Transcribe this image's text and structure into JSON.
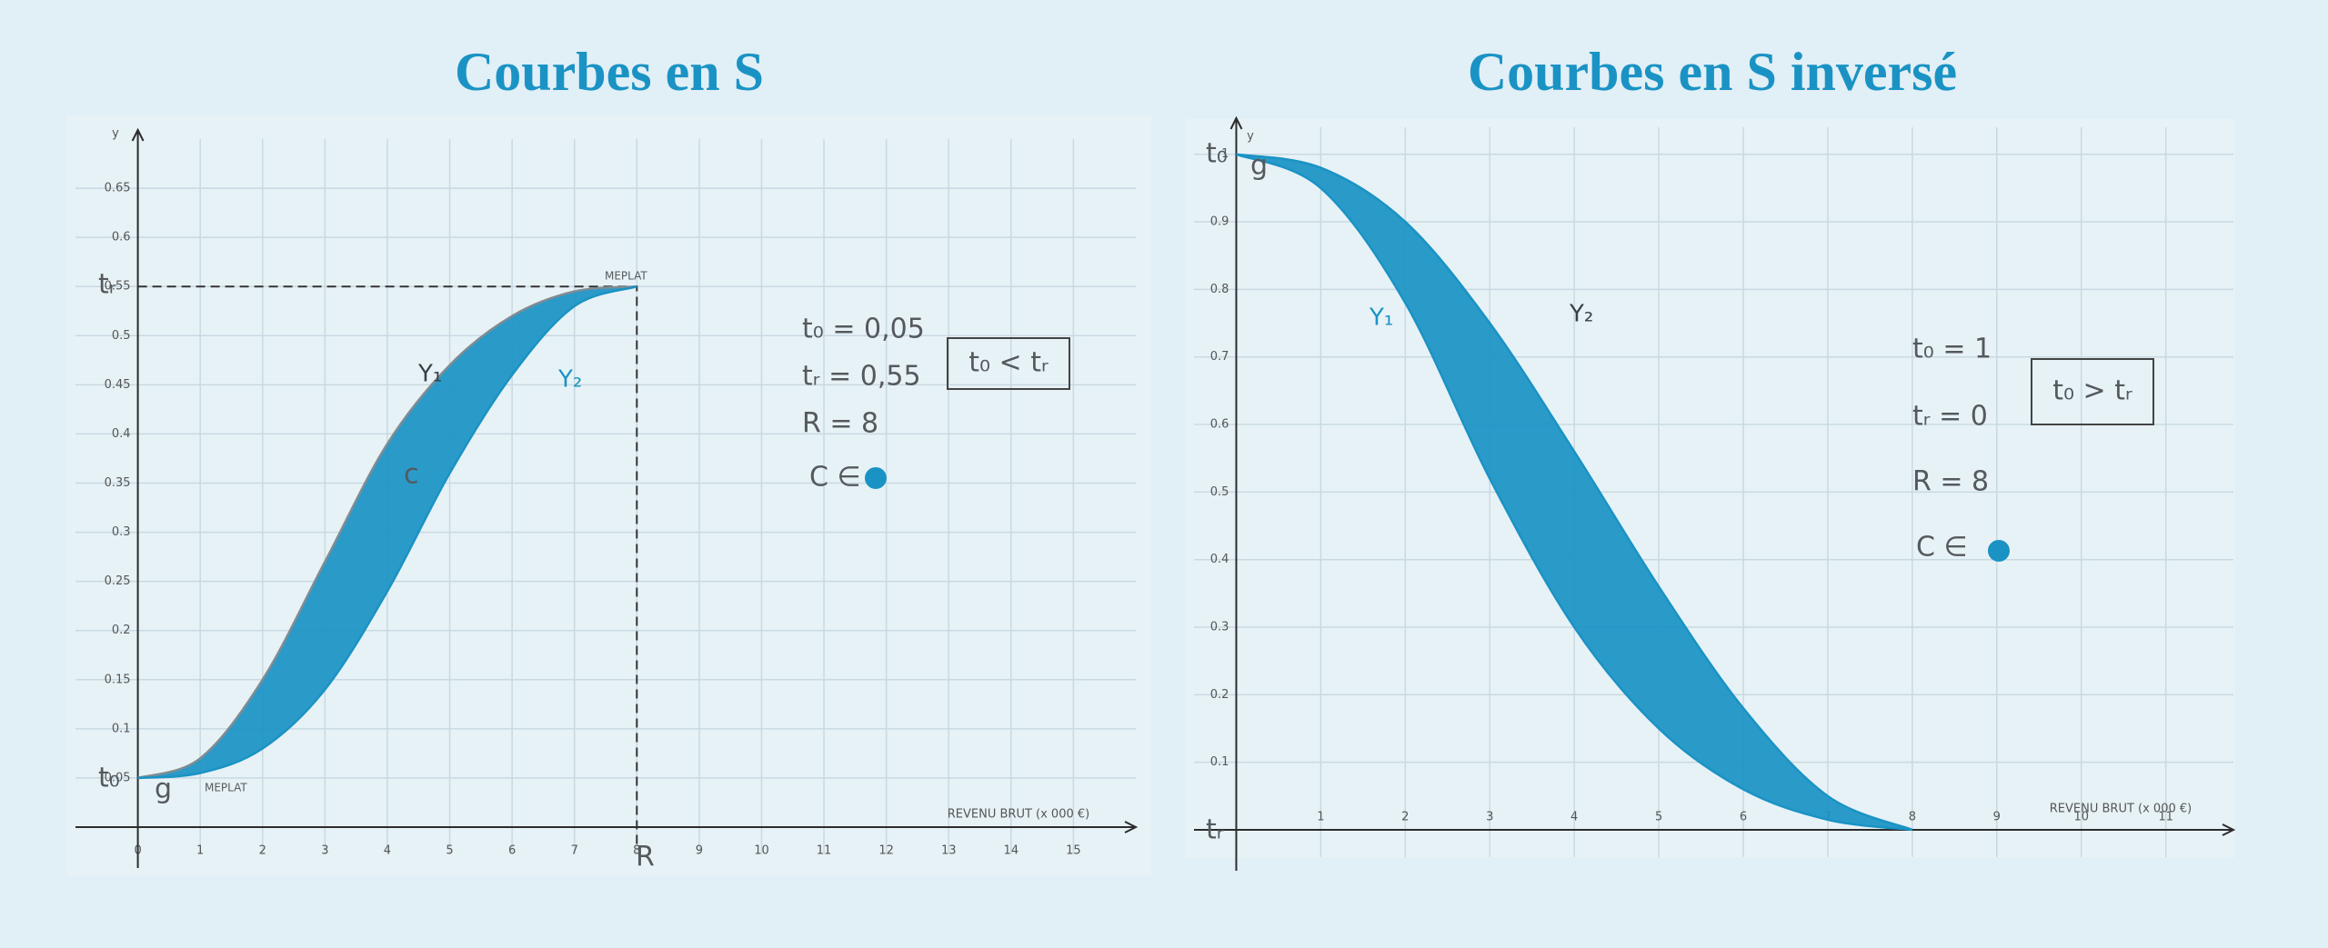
{
  "chart_data": [
    {
      "type": "area",
      "title": "Courbes en S",
      "x": [
        0,
        1,
        2,
        3,
        4,
        5,
        6,
        7,
        8
      ],
      "series": [
        {
          "name": "Y₁",
          "color": "#1a93c4",
          "values": [
            0.05,
            0.07,
            0.15,
            0.27,
            0.39,
            0.47,
            0.52,
            0.545,
            0.55
          ]
        },
        {
          "name": "Y₂",
          "color": "#1a93c4",
          "values": [
            0.05,
            0.055,
            0.08,
            0.14,
            0.24,
            0.36,
            0.46,
            0.53,
            0.55
          ]
        }
      ],
      "xlim": [
        -1,
        16
      ],
      "ylim": [
        0,
        0.7
      ],
      "xticks": [
        0,
        1,
        2,
        3,
        4,
        5,
        6,
        7,
        8,
        9,
        10,
        11,
        12,
        13,
        14,
        15
      ],
      "yticks": [
        0.05,
        0.1,
        0.15,
        0.2,
        0.25,
        0.3,
        0.35,
        0.4,
        0.45,
        0.5,
        0.55,
        0.6,
        0.65
      ],
      "grid": true,
      "xlabel": "REVENU BRUT (x 000 €)",
      "ylabel": "y",
      "annotations": [
        "t₀ = 0,05",
        "tᵣ = 0,55",
        "R = 8",
        "C ∈",
        "t₀ < tᵣ",
        "MEPLAT",
        "MEPLAT",
        "g",
        "c",
        "R",
        "t₀",
        "tᵣ"
      ]
    },
    {
      "type": "area",
      "title": "Courbes en S inversé",
      "x": [
        0,
        1,
        2,
        3,
        4,
        5,
        6,
        7,
        8
      ],
      "series": [
        {
          "name": "Y₁",
          "color": "#1a93c4",
          "values": [
            1,
            0.95,
            0.78,
            0.52,
            0.3,
            0.15,
            0.06,
            0.015,
            0
          ]
        },
        {
          "name": "Y₂",
          "color": "#1a93c4",
          "values": [
            1,
            0.98,
            0.9,
            0.75,
            0.56,
            0.36,
            0.18,
            0.05,
            0
          ]
        }
      ],
      "xlim": [
        -0.5,
        11.8
      ],
      "ylim": [
        0,
        1.04
      ],
      "xticks": [
        1,
        2,
        3,
        4,
        5,
        6,
        7,
        8,
        9,
        10,
        11
      ],
      "yticks": [
        0.1,
        0.2,
        0.3,
        0.4,
        0.5,
        0.6,
        0.7,
        0.8,
        0.9,
        1
      ],
      "grid": true,
      "xlabel": "REVENU BRUT (x 000 €)",
      "ylabel": "y",
      "annotations": [
        "t₀ = 1",
        "tᵣ = 0",
        "R = 8",
        "C ∈",
        "t₀ > tᵣ",
        "g",
        "t₀",
        "tᵣ"
      ]
    }
  ]
}
